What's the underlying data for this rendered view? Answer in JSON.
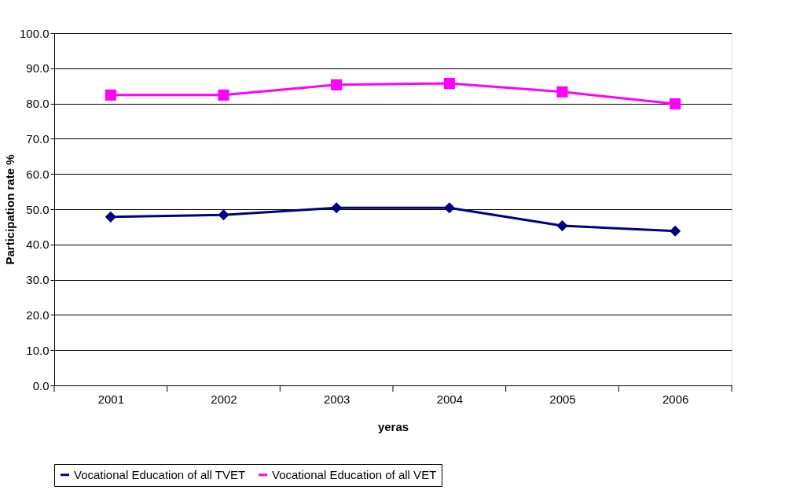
{
  "chart_data": {
    "type": "line",
    "xlabel": "yeras",
    "ylabel": "Participation rate %",
    "categories": [
      "2001",
      "2002",
      "2003",
      "2004",
      "2005",
      "2006"
    ],
    "series": [
      {
        "name": "Vocational Education of all TVET",
        "color": "#000080",
        "marker": "diamond",
        "values": [
          47.8,
          48.4,
          50.4,
          50.4,
          45.3,
          43.8
        ]
      },
      {
        "name": "Vocational Education of all VET",
        "color": "#ff00ff",
        "marker": "square",
        "values": [
          82.4,
          82.4,
          85.3,
          85.7,
          83.3,
          79.9
        ]
      }
    ],
    "ylim": [
      0,
      100
    ],
    "yticks": [
      {
        "value": 0,
        "label": "0.0"
      },
      {
        "value": 10,
        "label": "10.0"
      },
      {
        "value": 20,
        "label": "20.0"
      },
      {
        "value": 30,
        "label": "30.0"
      },
      {
        "value": 40,
        "label": "40.0"
      },
      {
        "value": 50,
        "label": "50.0"
      },
      {
        "value": 60,
        "label": "60.0"
      },
      {
        "value": 70,
        "label": "70.0"
      },
      {
        "value": 80,
        "label": "80.0"
      },
      {
        "value": 90,
        "label": "90.0"
      },
      {
        "value": 100,
        "label": "100.0"
      }
    ],
    "grid": "y",
    "legend": "bottom",
    "line_style": "solid"
  }
}
